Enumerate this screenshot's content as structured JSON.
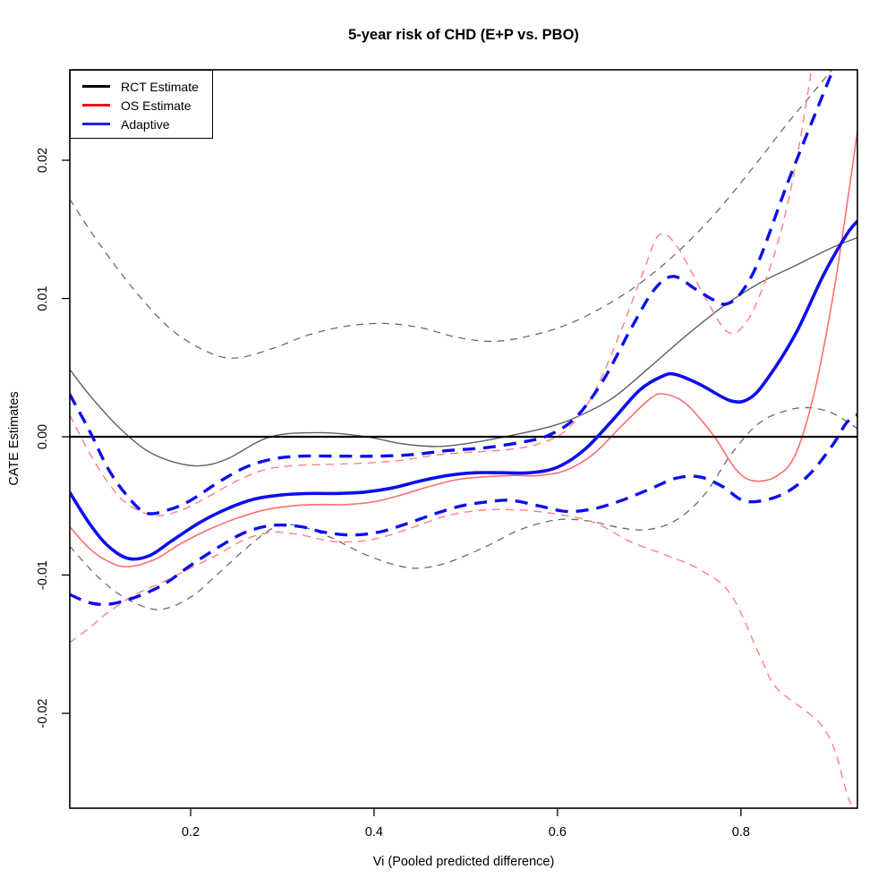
{
  "title": "5-year risk of CHD (E+P vs. PBO)",
  "legend": {
    "items": [
      {
        "label": "RCT Estimate",
        "color": "#000000"
      },
      {
        "label": "OS Estimate",
        "color": "#ee1111"
      },
      {
        "label": "Adaptive",
        "color": "#2222ee"
      }
    ]
  },
  "chart_data": {
    "type": "line",
    "title": "5-year risk of CHD (E+P vs. PBO)",
    "xlabel": "Vi (Pooled predicted difference)",
    "ylabel": "CATE Estimates",
    "grid": false,
    "legend_position": "top-left",
    "x_axis": {
      "range": [
        0.0683,
        0.927
      ],
      "ticks": [
        {
          "v": 0.2,
          "label": "0.2"
        },
        {
          "v": 0.4,
          "label": "0.4"
        },
        {
          "v": 0.6,
          "label": "0.6"
        },
        {
          "v": 0.8,
          "label": "0.8"
        }
      ]
    },
    "y_axis": {
      "range": [
        -0.02686,
        0.02654
      ],
      "ticks": [
        {
          "v": -0.02,
          "label": "-0.02"
        },
        {
          "v": -0.01,
          "label": "-0.01"
        },
        {
          "v": 0.0,
          "label": "0.00"
        },
        {
          "v": 0.01,
          "label": "0.01"
        },
        {
          "v": 0.02,
          "label": "0.02"
        }
      ]
    },
    "series": [
      {
        "name": "rct-ci-upper",
        "color": "#6b6b6b",
        "width": 1.3,
        "dash": "8 6.5",
        "points": [
          [
            0.068,
            0.0172
          ],
          [
            0.1,
            0.014
          ],
          [
            0.14,
            0.0105
          ],
          [
            0.18,
            0.0077
          ],
          [
            0.22,
            0.0061
          ],
          [
            0.25,
            0.0057
          ],
          [
            0.29,
            0.0064
          ],
          [
            0.33,
            0.0074
          ],
          [
            0.37,
            0.008
          ],
          [
            0.41,
            0.0082
          ],
          [
            0.45,
            0.0079
          ],
          [
            0.49,
            0.0072
          ],
          [
            0.53,
            0.0069
          ],
          [
            0.57,
            0.0073
          ],
          [
            0.61,
            0.0081
          ],
          [
            0.65,
            0.0094
          ],
          [
            0.69,
            0.0111
          ],
          [
            0.73,
            0.0133
          ],
          [
            0.77,
            0.016
          ],
          [
            0.81,
            0.0192
          ],
          [
            0.85,
            0.0226
          ],
          [
            0.88,
            0.025
          ],
          [
            0.905,
            0.027
          ]
        ]
      },
      {
        "name": "rct-ci-lower",
        "color": "#6b6b6b",
        "width": 1.3,
        "dash": "8 6.5",
        "points": [
          [
            0.068,
            -0.0079
          ],
          [
            0.1,
            -0.0102
          ],
          [
            0.13,
            -0.0117
          ],
          [
            0.165,
            -0.0125
          ],
          [
            0.2,
            -0.0116
          ],
          [
            0.23,
            -0.0099
          ],
          [
            0.26,
            -0.0081
          ],
          [
            0.29,
            -0.0066
          ],
          [
            0.315,
            -0.0064
          ],
          [
            0.35,
            -0.0072
          ],
          [
            0.39,
            -0.0085
          ],
          [
            0.425,
            -0.0093
          ],
          [
            0.45,
            -0.0095
          ],
          [
            0.48,
            -0.0091
          ],
          [
            0.52,
            -0.008
          ],
          [
            0.56,
            -0.0067
          ],
          [
            0.6,
            -0.006
          ],
          [
            0.635,
            -0.0061
          ],
          [
            0.67,
            -0.0066
          ],
          [
            0.7,
            -0.0067
          ],
          [
            0.73,
            -0.006
          ],
          [
            0.76,
            -0.0042
          ],
          [
            0.79,
            -0.0012
          ],
          [
            0.82,
            0.001
          ],
          [
            0.85,
            0.0019
          ],
          [
            0.875,
            0.0021
          ],
          [
            0.9,
            0.0017
          ],
          [
            0.927,
            0.0006
          ]
        ]
      },
      {
        "name": "rct-cate-curve",
        "color": "#5f5f5f",
        "width": 1.4,
        "dash": null,
        "points": [
          [
            0.068,
            0.0049
          ],
          [
            0.09,
            0.003
          ],
          [
            0.12,
            0.0008
          ],
          [
            0.15,
            -0.0009
          ],
          [
            0.18,
            -0.0018
          ],
          [
            0.21,
            -0.0021
          ],
          [
            0.24,
            -0.0016
          ],
          [
            0.287,
            0.0
          ],
          [
            0.343,
            0.0003
          ],
          [
            0.392,
            0.0
          ],
          [
            0.43,
            -0.0005
          ],
          [
            0.47,
            -0.0007
          ],
          [
            0.51,
            -0.0004
          ],
          [
            0.55,
            0.0001
          ],
          [
            0.59,
            0.0007
          ],
          [
            0.62,
            0.0014
          ],
          [
            0.66,
            0.0028
          ],
          [
            0.7,
            0.005
          ],
          [
            0.74,
            0.0073
          ],
          [
            0.78,
            0.0094
          ],
          [
            0.82,
            0.0111
          ],
          [
            0.86,
            0.0124
          ],
          [
            0.9,
            0.0137
          ],
          [
            0.927,
            0.0144
          ]
        ]
      },
      {
        "name": "os-ci-upper",
        "color": "#ff8080",
        "width": 1.4,
        "dash": "9 6.5",
        "points": [
          [
            0.068,
            0.0016
          ],
          [
            0.09,
            -0.0012
          ],
          [
            0.11,
            -0.0033
          ],
          [
            0.13,
            -0.0048
          ],
          [
            0.16,
            -0.0057
          ],
          [
            0.19,
            -0.0053
          ],
          [
            0.22,
            -0.0043
          ],
          [
            0.25,
            -0.0032
          ],
          [
            0.28,
            -0.0024
          ],
          [
            0.31,
            -0.0021
          ],
          [
            0.35,
            -0.002
          ],
          [
            0.39,
            -0.0019
          ],
          [
            0.43,
            -0.0017
          ],
          [
            0.47,
            -0.0013
          ],
          [
            0.51,
            -0.0011
          ],
          [
            0.55,
            -0.0009
          ],
          [
            0.58,
            -0.0005
          ],
          [
            0.61,
            0.0005
          ],
          [
            0.64,
            0.0032
          ],
          [
            0.67,
            0.0078
          ],
          [
            0.695,
            0.0122
          ],
          [
            0.711,
            0.0146
          ],
          [
            0.73,
            0.0138
          ],
          [
            0.76,
            0.0102
          ],
          [
            0.785,
            0.0076
          ],
          [
            0.805,
            0.0082
          ],
          [
            0.825,
            0.011
          ],
          [
            0.845,
            0.0152
          ],
          [
            0.862,
            0.0205
          ],
          [
            0.878,
            0.027
          ]
        ]
      },
      {
        "name": "os-ci-lower",
        "color": "#ff8080",
        "width": 1.4,
        "dash": "9 6.5",
        "points": [
          [
            0.068,
            -0.0149
          ],
          [
            0.09,
            -0.0138
          ],
          [
            0.11,
            -0.0127
          ],
          [
            0.14,
            -0.0114
          ],
          [
            0.17,
            -0.0105
          ],
          [
            0.2,
            -0.0095
          ],
          [
            0.23,
            -0.0085
          ],
          [
            0.26,
            -0.0074
          ],
          [
            0.29,
            -0.0069
          ],
          [
            0.32,
            -0.0071
          ],
          [
            0.36,
            -0.0076
          ],
          [
            0.4,
            -0.0074
          ],
          [
            0.44,
            -0.0066
          ],
          [
            0.48,
            -0.0057
          ],
          [
            0.52,
            -0.0053
          ],
          [
            0.56,
            -0.0053
          ],
          [
            0.6,
            -0.0056
          ],
          [
            0.64,
            -0.0062
          ],
          [
            0.68,
            -0.0076
          ],
          [
            0.72,
            -0.0086
          ],
          [
            0.755,
            -0.0096
          ],
          [
            0.789,
            -0.0114
          ],
          [
            0.821,
            -0.0159
          ],
          [
            0.838,
            -0.0181
          ],
          [
            0.87,
            -0.0198
          ],
          [
            0.887,
            -0.0208
          ],
          [
            0.902,
            -0.0226
          ],
          [
            0.916,
            -0.0259
          ],
          [
            0.925,
            -0.0272
          ]
        ]
      },
      {
        "name": "os-estimate-curve",
        "color": "#ff6e6e",
        "width": 1.6,
        "dash": null,
        "points": [
          [
            0.068,
            -0.0065
          ],
          [
            0.09,
            -0.0081
          ],
          [
            0.11,
            -0.009
          ],
          [
            0.13,
            -0.0094
          ],
          [
            0.16,
            -0.0089
          ],
          [
            0.19,
            -0.0077
          ],
          [
            0.22,
            -0.0067
          ],
          [
            0.25,
            -0.0059
          ],
          [
            0.28,
            -0.0053
          ],
          [
            0.31,
            -0.005
          ],
          [
            0.34,
            -0.0049
          ],
          [
            0.37,
            -0.0049
          ],
          [
            0.4,
            -0.0047
          ],
          [
            0.43,
            -0.0042
          ],
          [
            0.46,
            -0.0036
          ],
          [
            0.49,
            -0.0031
          ],
          [
            0.52,
            -0.0029
          ],
          [
            0.55,
            -0.0028
          ],
          [
            0.58,
            -0.0028
          ],
          [
            0.61,
            -0.0024
          ],
          [
            0.64,
            -0.0012
          ],
          [
            0.67,
            0.0008
          ],
          [
            0.7,
            0.0027
          ],
          [
            0.715,
            0.0031
          ],
          [
            0.74,
            0.0024
          ],
          [
            0.77,
            0.0001
          ],
          [
            0.795,
            -0.0024
          ],
          [
            0.815,
            -0.0032
          ],
          [
            0.84,
            -0.0028
          ],
          [
            0.86,
            -0.0012
          ],
          [
            0.88,
            0.0032
          ],
          [
            0.9,
            0.01
          ],
          [
            0.915,
            0.0165
          ],
          [
            0.927,
            0.0221
          ]
        ]
      },
      {
        "name": "rct-overall-zero-line",
        "color": "#000000",
        "width": 2.2,
        "dash": null,
        "points": [
          [
            0.0683,
            0.0
          ],
          [
            0.927,
            0.0
          ]
        ]
      },
      {
        "name": "adaptive-ci-upper",
        "color": "#0d0dee",
        "width": 3.4,
        "dash": "14 9",
        "points": [
          [
            0.068,
            0.0031
          ],
          [
            0.09,
            0.0004
          ],
          [
            0.11,
            -0.0023
          ],
          [
            0.13,
            -0.0042
          ],
          [
            0.151,
            -0.0055
          ],
          [
            0.175,
            -0.0053
          ],
          [
            0.2,
            -0.0046
          ],
          [
            0.23,
            -0.0033
          ],
          [
            0.26,
            -0.0022
          ],
          [
            0.29,
            -0.0016
          ],
          [
            0.32,
            -0.0014
          ],
          [
            0.36,
            -0.0014
          ],
          [
            0.4,
            -0.0014
          ],
          [
            0.44,
            -0.0013
          ],
          [
            0.48,
            -0.001
          ],
          [
            0.52,
            -0.0008
          ],
          [
            0.56,
            -0.0004
          ],
          [
            0.59,
            0.0001
          ],
          [
            0.62,
            0.0014
          ],
          [
            0.65,
            0.0041
          ],
          [
            0.68,
            0.0078
          ],
          [
            0.705,
            0.0106
          ],
          [
            0.726,
            0.0116
          ],
          [
            0.75,
            0.0107
          ],
          [
            0.77,
            0.0099
          ],
          [
            0.784,
            0.0096
          ],
          [
            0.8,
            0.0104
          ],
          [
            0.82,
            0.0128
          ],
          [
            0.85,
            0.0182
          ],
          [
            0.88,
            0.0232
          ],
          [
            0.902,
            0.0268
          ]
        ]
      },
      {
        "name": "adaptive-ci-lower",
        "color": "#0d0dee",
        "width": 3.4,
        "dash": "14 9",
        "points": [
          [
            0.068,
            -0.0114
          ],
          [
            0.09,
            -0.012
          ],
          [
            0.112,
            -0.0121
          ],
          [
            0.14,
            -0.0116
          ],
          [
            0.17,
            -0.0107
          ],
          [
            0.2,
            -0.0093
          ],
          [
            0.23,
            -0.008
          ],
          [
            0.26,
            -0.0069
          ],
          [
            0.29,
            -0.0064
          ],
          [
            0.32,
            -0.0065
          ],
          [
            0.345,
            -0.0069
          ],
          [
            0.375,
            -0.0071
          ],
          [
            0.405,
            -0.0069
          ],
          [
            0.435,
            -0.0063
          ],
          [
            0.465,
            -0.0056
          ],
          [
            0.495,
            -0.005
          ],
          [
            0.525,
            -0.0047
          ],
          [
            0.55,
            -0.0046
          ],
          [
            0.58,
            -0.005
          ],
          [
            0.61,
            -0.0054
          ],
          [
            0.64,
            -0.0052
          ],
          [
            0.67,
            -0.0046
          ],
          [
            0.7,
            -0.0038
          ],
          [
            0.729,
            -0.003
          ],
          [
            0.755,
            -0.0029
          ],
          [
            0.78,
            -0.0036
          ],
          [
            0.802,
            -0.0046
          ],
          [
            0.825,
            -0.0046
          ],
          [
            0.85,
            -0.004
          ],
          [
            0.875,
            -0.0027
          ],
          [
            0.9,
            -0.0006
          ],
          [
            0.915,
            0.001
          ],
          [
            0.927,
            0.0016
          ]
        ]
      },
      {
        "name": "adaptive-curve",
        "color": "#0d0dee",
        "width": 3.6,
        "dash": null,
        "points": [
          [
            0.068,
            -0.004
          ],
          [
            0.09,
            -0.0063
          ],
          [
            0.11,
            -0.0079
          ],
          [
            0.132,
            -0.0088
          ],
          [
            0.155,
            -0.0086
          ],
          [
            0.18,
            -0.0075
          ],
          [
            0.21,
            -0.0062
          ],
          [
            0.24,
            -0.0052
          ],
          [
            0.27,
            -0.0045
          ],
          [
            0.3,
            -0.0042
          ],
          [
            0.33,
            -0.0041
          ],
          [
            0.36,
            -0.0041
          ],
          [
            0.39,
            -0.004
          ],
          [
            0.42,
            -0.0037
          ],
          [
            0.45,
            -0.0032
          ],
          [
            0.48,
            -0.0028
          ],
          [
            0.51,
            -0.0026
          ],
          [
            0.54,
            -0.0026
          ],
          [
            0.57,
            -0.0026
          ],
          [
            0.6,
            -0.0022
          ],
          [
            0.63,
            -0.0009
          ],
          [
            0.66,
            0.0012
          ],
          [
            0.69,
            0.0034
          ],
          [
            0.715,
            0.0044
          ],
          [
            0.729,
            0.0045
          ],
          [
            0.755,
            0.0038
          ],
          [
            0.789,
            0.0026
          ],
          [
            0.81,
            0.0028
          ],
          [
            0.83,
            0.0043
          ],
          [
            0.86,
            0.0075
          ],
          [
            0.89,
            0.0117
          ],
          [
            0.915,
            0.0146
          ],
          [
            0.927,
            0.0156
          ]
        ]
      }
    ]
  }
}
